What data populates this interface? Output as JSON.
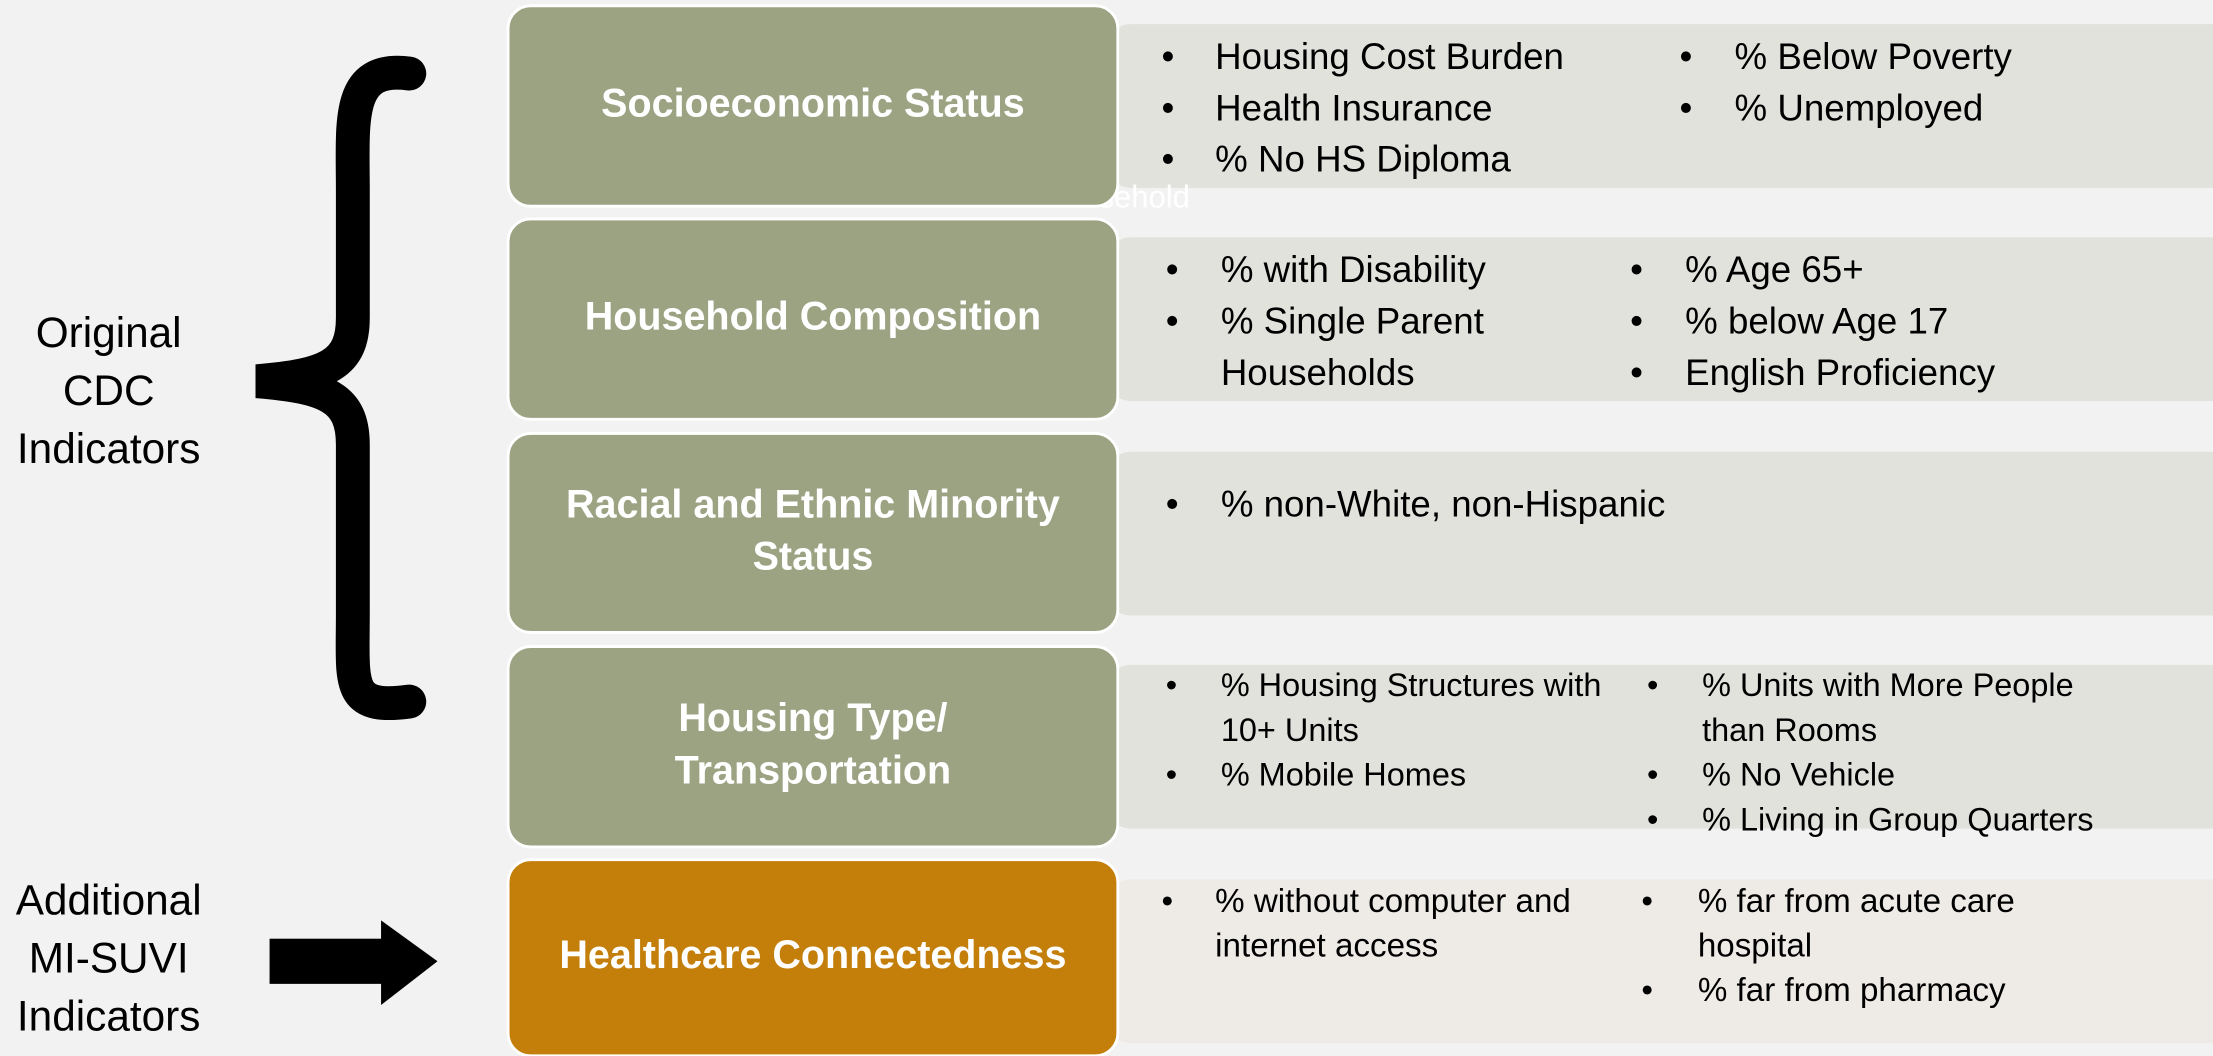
{
  "left_labels": [
    {
      "lines": [
        "Original",
        "CDC",
        "Indicators"
      ]
    },
    {
      "lines": [
        "Additional",
        "MI-SUVI",
        "Indicators"
      ]
    }
  ],
  "ghost_text": "Household",
  "rows": [
    {
      "title": [
        "Socioeconomic Status"
      ],
      "columns": [
        [
          [
            "Housing Cost Burden"
          ],
          [
            "Health Insurance"
          ],
          [
            "% No HS Diploma"
          ]
        ],
        [
          [
            "% Below Poverty"
          ],
          [
            "% Unemployed"
          ]
        ]
      ]
    },
    {
      "title": [
        "Household Composition"
      ],
      "columns": [
        [
          [
            "% with Disability"
          ],
          [
            "% Single Parent",
            "Households"
          ]
        ],
        [
          [
            "% Age 65+"
          ],
          [
            "% below Age 17"
          ],
          [
            "English Proficiency"
          ]
        ]
      ]
    },
    {
      "title": [
        "Racial and Ethnic Minority",
        "Status"
      ],
      "columns": [
        [
          [
            "% non-White, non-Hispanic"
          ]
        ],
        []
      ]
    },
    {
      "title": [
        "Housing Type/",
        "Transportation"
      ],
      "columns": [
        [
          [
            "% Housing Structures with",
            "10+ Units"
          ],
          [
            "% Mobile Homes"
          ]
        ],
        [
          [
            "% Units with More People",
            "than Rooms"
          ],
          [
            "% No Vehicle"
          ],
          [
            "% Living in Group Quarters"
          ]
        ]
      ]
    },
    {
      "title": [
        "Healthcare Connectedness"
      ],
      "columns": [
        [
          [
            "% without computer and",
            "internet access"
          ]
        ],
        [
          [
            "% far from acute care",
            "hospital"
          ],
          [
            "% far from pharmacy"
          ]
        ]
      ]
    }
  ]
}
